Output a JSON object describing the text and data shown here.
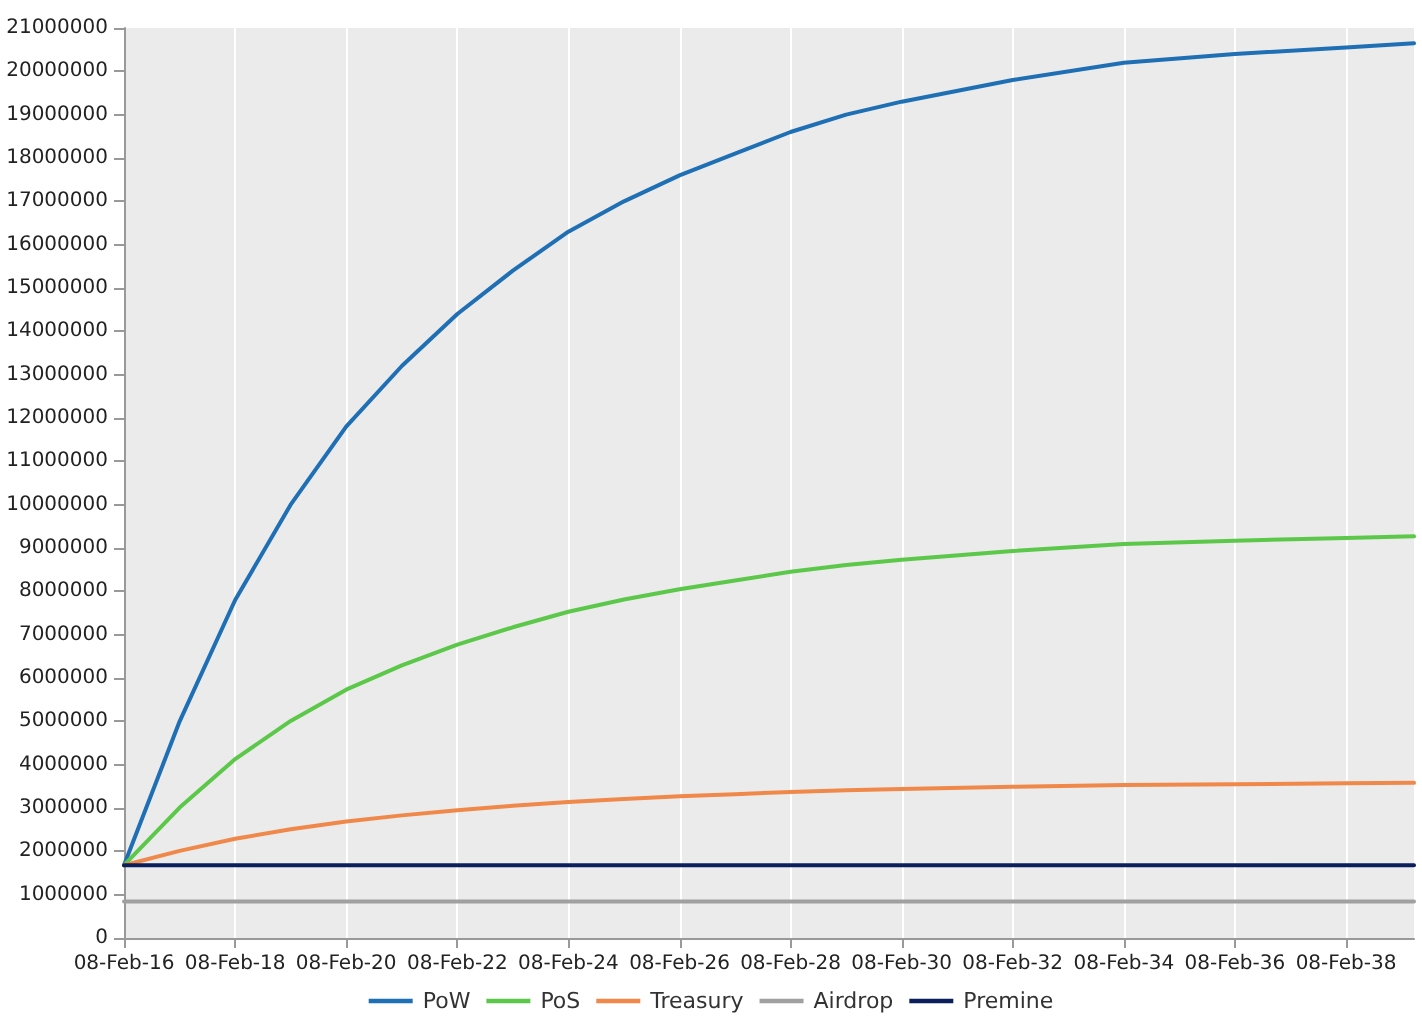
{
  "chart_data": {
    "type": "line",
    "x": [
      "2016-02-08",
      "2017-02-08",
      "2018-02-08",
      "2019-02-08",
      "2020-02-08",
      "2021-02-08",
      "2022-02-08",
      "2023-02-08",
      "2024-02-08",
      "2025-02-08",
      "2026-02-08",
      "2027-02-08",
      "2028-02-08",
      "2029-02-08",
      "2030-02-08",
      "2032-02-08",
      "2034-02-08",
      "2036-02-08",
      "2038-02-08",
      "2039-05-01"
    ],
    "series": [
      {
        "name": "PoW",
        "color": "#1f6fb4",
        "values": [
          1680000,
          5000000,
          7800000,
          10000000,
          11800000,
          13200000,
          14400000,
          15400000,
          16300000,
          17000000,
          17600000,
          18100000,
          18600000,
          19000000,
          19300000,
          19800000,
          20200000,
          20400000,
          20550000,
          20650000
        ]
      },
      {
        "name": "PoS",
        "color": "#5cc84a",
        "values": [
          1680000,
          3010000,
          4130000,
          5010000,
          5730000,
          6290000,
          6770000,
          7170000,
          7530000,
          7810000,
          8050000,
          8250000,
          8450000,
          8610000,
          8730000,
          8930000,
          9090000,
          9170000,
          9230000,
          9270000
        ]
      },
      {
        "name": "Treasury",
        "color": "#f0884a",
        "values": [
          1680000,
          2010000,
          2290000,
          2510000,
          2690000,
          2830000,
          2950000,
          3050000,
          3140000,
          3210000,
          3270000,
          3320000,
          3370000,
          3410000,
          3440000,
          3490000,
          3530000,
          3550000,
          3570000,
          3580000
        ]
      },
      {
        "name": "Airdrop",
        "color": "#a0a0a0",
        "values": [
          840000,
          840000,
          840000,
          840000,
          840000,
          840000,
          840000,
          840000,
          840000,
          840000,
          840000,
          840000,
          840000,
          840000,
          840000,
          840000,
          840000,
          840000,
          840000,
          840000
        ]
      },
      {
        "name": "Premine",
        "color": "#0a1f5c",
        "values": [
          1680000,
          1680000,
          1680000,
          1680000,
          1680000,
          1680000,
          1680000,
          1680000,
          1680000,
          1680000,
          1680000,
          1680000,
          1680000,
          1680000,
          1680000,
          1680000,
          1680000,
          1680000,
          1680000,
          1680000
        ]
      }
    ],
    "xlim": [
      "2016-02-08",
      "2039-05-01"
    ],
    "xticks": [
      {
        "value": "2016-02-08",
        "label": "08-Feb-16"
      },
      {
        "value": "2018-02-08",
        "label": "08-Feb-18"
      },
      {
        "value": "2020-02-08",
        "label": "08-Feb-20"
      },
      {
        "value": "2022-02-08",
        "label": "08-Feb-22"
      },
      {
        "value": "2024-02-08",
        "label": "08-Feb-24"
      },
      {
        "value": "2026-02-08",
        "label": "08-Feb-26"
      },
      {
        "value": "2028-02-08",
        "label": "08-Feb-28"
      },
      {
        "value": "2030-02-08",
        "label": "08-Feb-30"
      },
      {
        "value": "2032-02-08",
        "label": "08-Feb-32"
      },
      {
        "value": "2034-02-08",
        "label": "08-Feb-34"
      },
      {
        "value": "2036-02-08",
        "label": "08-Feb-36"
      },
      {
        "value": "2038-02-08",
        "label": "08-Feb-38"
      }
    ],
    "ylim": [
      0,
      21000000
    ],
    "yticks": [
      0,
      1000000,
      2000000,
      3000000,
      4000000,
      5000000,
      6000000,
      7000000,
      8000000,
      9000000,
      10000000,
      11000000,
      12000000,
      13000000,
      14000000,
      15000000,
      16000000,
      17000000,
      18000000,
      19000000,
      20000000,
      21000000
    ],
    "grid": "x",
    "legend": "bottom",
    "marker": "none",
    "line_style": "solid"
  }
}
